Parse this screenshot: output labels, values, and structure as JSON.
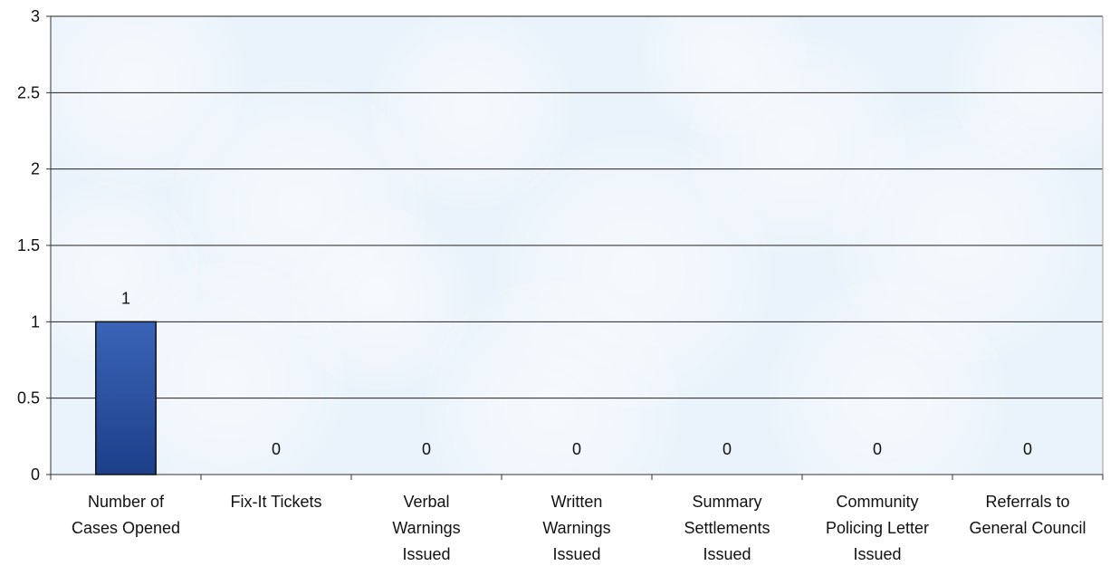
{
  "colors": {
    "bar": "#2f57a8",
    "bar_dark": "#1b3d86",
    "plot_bg": "#eaf3fb",
    "gridline": "#222222"
  },
  "chart_data": {
    "type": "bar",
    "categories": [
      [
        "Number of",
        "Cases Opened"
      ],
      [
        "Fix-It Tickets"
      ],
      [
        "Verbal",
        "Warnings",
        "Issued"
      ],
      [
        "Written",
        "Warnings",
        "Issued"
      ],
      [
        "Summary",
        "Settlements",
        "Issued"
      ],
      [
        "Community",
        "Policing Letter",
        "Issued"
      ],
      [
        "Referrals to",
        "General Council"
      ]
    ],
    "values": [
      1,
      0,
      0,
      0,
      0,
      0,
      0
    ],
    "data_labels": [
      "1",
      "0",
      "0",
      "0",
      "0",
      "0",
      "0"
    ],
    "yticks": [
      "0",
      "0.5",
      "1",
      "1.5",
      "2",
      "2.5",
      "3"
    ],
    "ylim": [
      0,
      3
    ],
    "grid": true,
    "title": "",
    "xlabel": "",
    "ylabel": ""
  }
}
